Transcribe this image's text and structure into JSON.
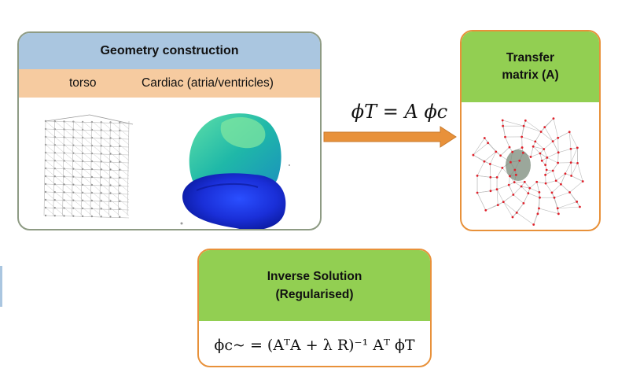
{
  "geometry_box": {
    "title": "Geometry construction",
    "label_torso": "torso",
    "label_cardiac": "Cardiac (atria/ventricles)"
  },
  "transfer_box": {
    "title_line1": "Transfer",
    "title_line2": "matrix (A)"
  },
  "forward_equation": "ϕT = A ϕc",
  "inverse_box": {
    "title_line1": "Inverse Solution",
    "title_line2": "(Regularised)",
    "equation": "ϕc~ = (AᵀA + λ R)⁻¹ Aᵀ ϕT"
  },
  "colors": {
    "geometry_header": "#aac6e0",
    "geometry_subheader": "#f6cba0",
    "green_header": "#92cf52",
    "orange_border": "#e8913a",
    "arrow": "#e8913a"
  }
}
